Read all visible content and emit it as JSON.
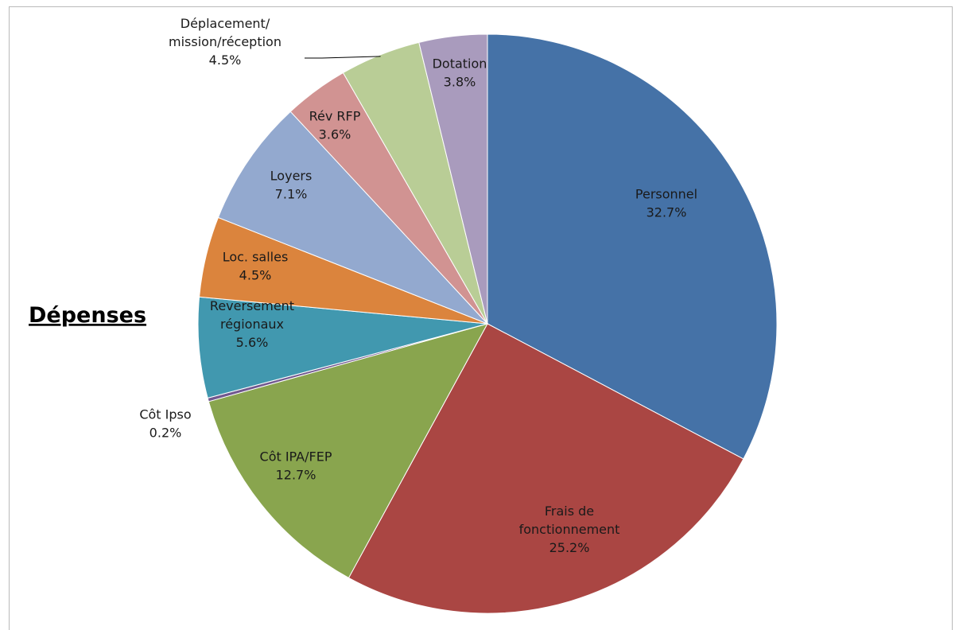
{
  "chart_data": {
    "type": "pie",
    "title": "Dépenses",
    "slices": [
      {
        "label_lines": [
          "Personnel"
        ],
        "value_label": "32.7%",
        "value": 32.7,
        "color": "#4572A7"
      },
      {
        "label_lines": [
          "Frais de",
          "fonctionnement"
        ],
        "value_label": "25.2%",
        "value": 25.2,
        "color": "#AA4643"
      },
      {
        "label_lines": [
          "Côt IPA/FEP"
        ],
        "value_label": "12.7%",
        "value": 12.7,
        "color": "#89A54E"
      },
      {
        "label_lines": [
          "Côt Ipso"
        ],
        "value_label": "0.2%",
        "value": 0.2,
        "color": "#71588F"
      },
      {
        "label_lines": [
          "Reversement",
          "régionaux"
        ],
        "value_label": "5.6%",
        "value": 5.6,
        "color": "#4198AF"
      },
      {
        "label_lines": [
          "Loc. salles"
        ],
        "value_label": "4.5%",
        "value": 4.5,
        "color": "#DB843D"
      },
      {
        "label_lines": [
          "Loyers"
        ],
        "value_label": "7.1%",
        "value": 7.1,
        "color": "#93A9CF"
      },
      {
        "label_lines": [
          "Rév RFP"
        ],
        "value_label": "3.6%",
        "value": 3.6,
        "color": "#D19392"
      },
      {
        "label_lines": [
          "Déplacement/",
          "mission/réception"
        ],
        "value_label": "4.5%",
        "value": 4.5,
        "color": "#B9CD96"
      },
      {
        "label_lines": [
          "Dotation"
        ],
        "value_label": "3.8%",
        "value": 3.8,
        "color": "#A99BBD"
      }
    ]
  }
}
